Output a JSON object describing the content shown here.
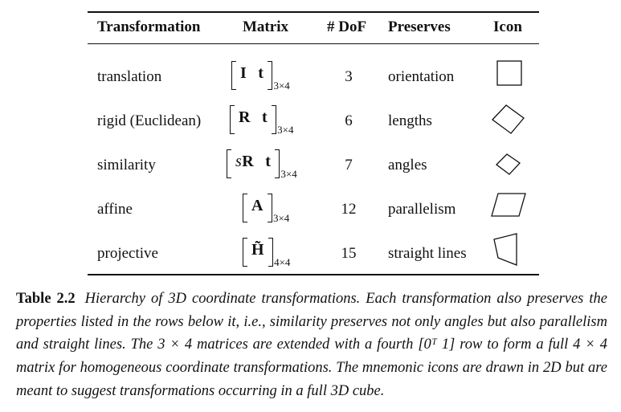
{
  "table": {
    "headers": {
      "transformation": "Transformation",
      "matrix": "Matrix",
      "dof": "# DoF",
      "preserves": "Preserves",
      "icon": "Icon"
    },
    "rows": [
      {
        "name": "translation",
        "matrix_pre": "I",
        "matrix_post": "t",
        "subscript": "3×4",
        "dof": "3",
        "preserves": "orientation",
        "icon": "square-icon"
      },
      {
        "name": "rigid (Euclidean)",
        "matrix_pre": "R",
        "matrix_post": "t",
        "subscript": "3×4",
        "dof": "6",
        "preserves": "lengths",
        "icon": "rotated-square-icon"
      },
      {
        "name": "similarity",
        "matrix_scalar": "s",
        "matrix_pre": "R",
        "matrix_post": "t",
        "subscript": "3×4",
        "dof": "7",
        "preserves": "angles",
        "icon": "scaled-rotated-square-icon"
      },
      {
        "name": "affine",
        "matrix_pre": "A",
        "subscript": "3×4",
        "dof": "12",
        "preserves": "parallelism",
        "icon": "parallelogram-icon"
      },
      {
        "name": "projective",
        "matrix_pre": "H̃",
        "subscript": "4×4",
        "dof": "15",
        "preserves": "straight lines",
        "icon": "trapezoid-icon"
      }
    ]
  },
  "caption": {
    "label": "Table 2.2",
    "text": "Hierarchy of 3D coordinate transformations. Each transformation also preserves the properties listed in the rows below it, i.e., similarity preserves not only angles but also parallelism and straight lines. The 3 × 4 matrices are extended with a fourth [0ᵀ 1] row to form a full 4 × 4 matrix for homogeneous coordinate transformations. The mnemonic icons are drawn in 2D but are meant to suggest transformations occurring in a full 3D cube."
  }
}
